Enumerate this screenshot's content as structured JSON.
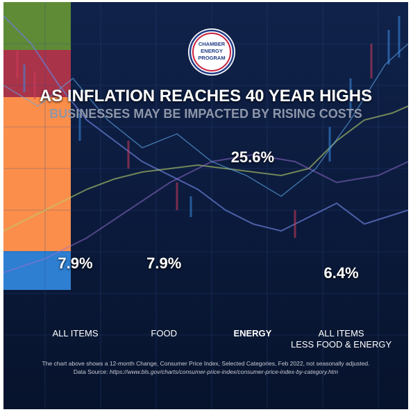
{
  "chart_data": {
    "type": "bar",
    "logo_text": [
      "CHAMBER",
      "ENERGY",
      "PROGRAM"
    ],
    "title": "AS INFLATION REACHES 40 YEAR HIGHS",
    "subtitle": "BUSINESSES MAY BE IMPACTED BY RISING COSTS",
    "categories": [
      "ALL ITEMS",
      "FOOD",
      "ENERGY",
      "ALL ITEMS\nLESS FOOD & ENERGY"
    ],
    "values": [
      7.9,
      7.9,
      25.6,
      6.4
    ],
    "value_labels": [
      "7.9%",
      "7.9%",
      "25.6%",
      "6.4%"
    ],
    "colors": [
      "#5f8b36",
      "#a93349",
      "#fb8e4b",
      "#2e7fd1"
    ],
    "caption": "The chart above  shows a 12-month Change, Consumer Price Index, Selected Categories, Feb 2022, not seasonally adjusted.",
    "source_label": "Data Source:",
    "source_url": "https://www.bls.gov/charts/consumer-price-index/consumer-price-index-by-category.htm"
  }
}
